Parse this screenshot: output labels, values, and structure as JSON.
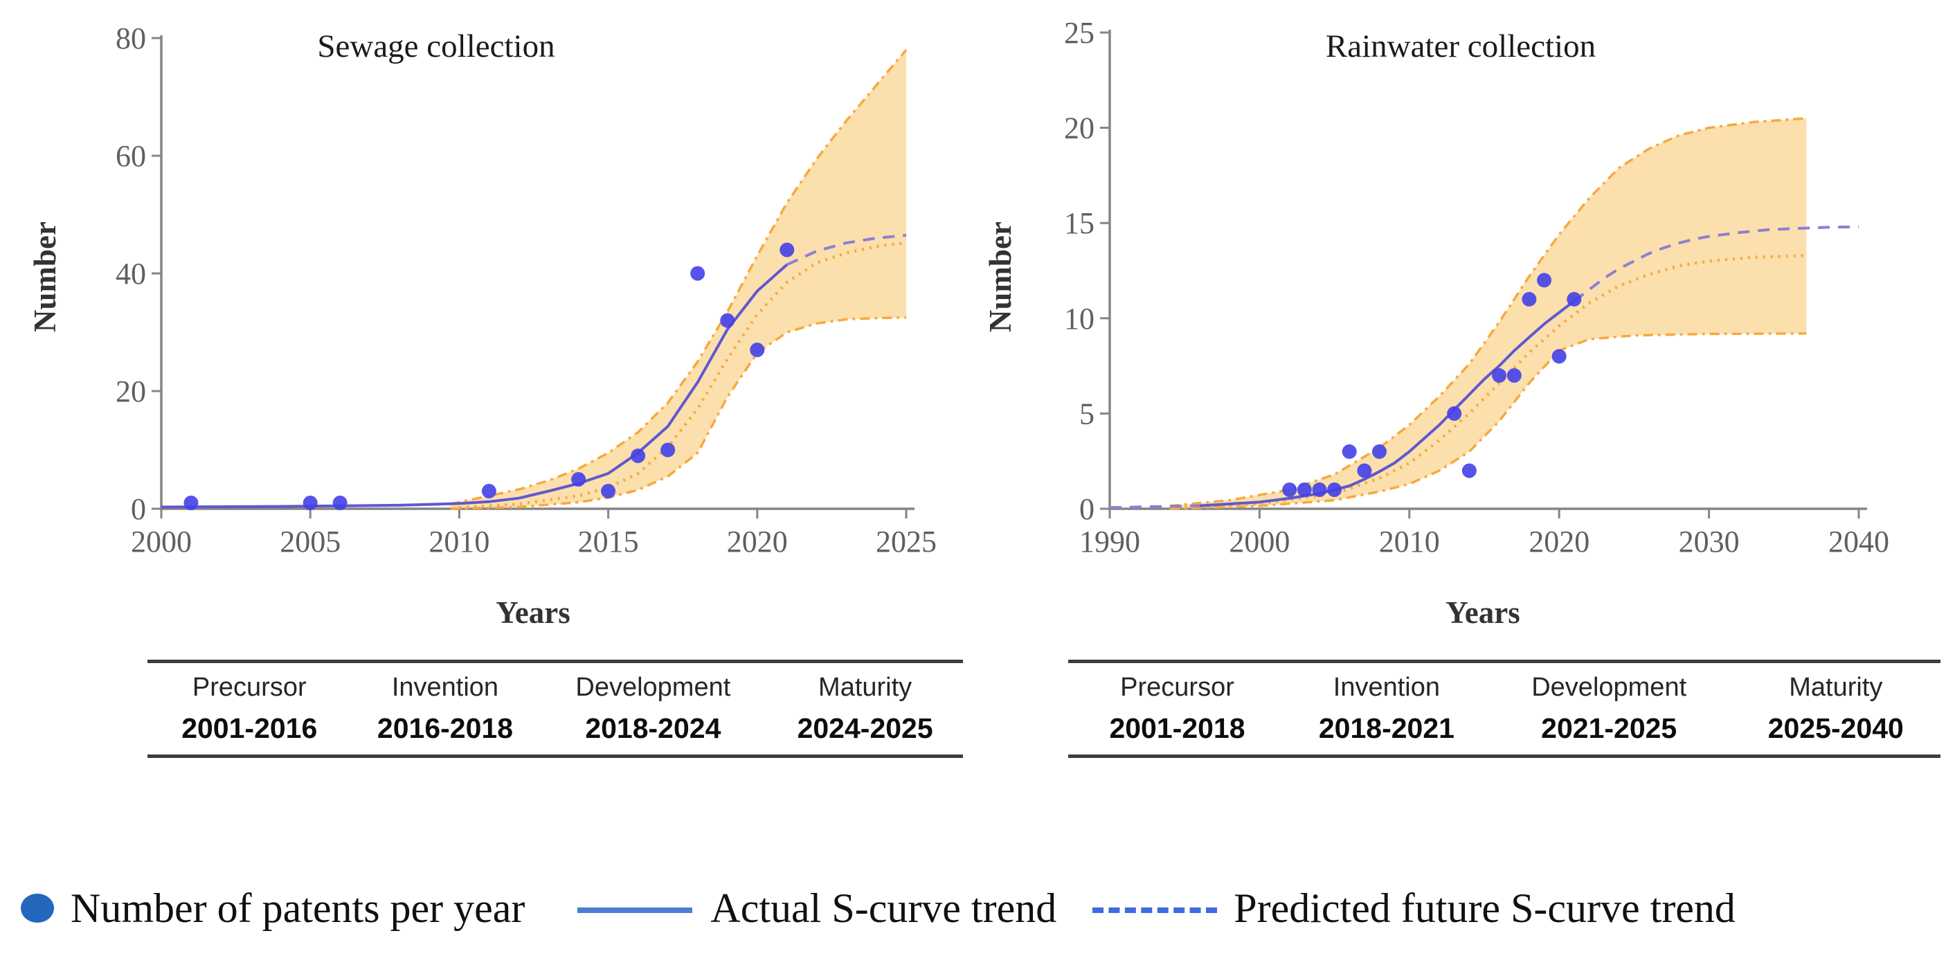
{
  "colors": {
    "axis": "#858585",
    "tick_label": "#5f5f5f",
    "point": "#4340E8",
    "curve": "#5F58D0",
    "predicted": "#8C7FD2",
    "band_fill": "#F7C569",
    "band_stroke": "#F7A93D",
    "legend_dot": "#2368BD",
    "legend_solid_line": "#4A7FD2",
    "legend_dashed_line": "#3E6BE0"
  },
  "legend": {
    "items": [
      {
        "marker": "dot",
        "label": "Number of patents per year"
      },
      {
        "marker": "solid-line",
        "label": "Actual S-curve trend"
      },
      {
        "marker": "dashed-line",
        "label": "Predicted future S-curve trend"
      }
    ]
  },
  "chart_data": [
    {
      "type": "scatter",
      "title": "Sewage collection",
      "xlabel": "Years",
      "ylabel": "Number",
      "xlim": [
        2000,
        2025
      ],
      "ylim": [
        0,
        80
      ],
      "xticks": [
        2000,
        2005,
        2010,
        2015,
        2020,
        2025
      ],
      "yticks": [
        0,
        20,
        40,
        60,
        80
      ],
      "grid": false,
      "series": [
        {
          "name": "Number of patents per year",
          "type": "scatter",
          "x": [
            2001,
            2005,
            2006,
            2011,
            2014,
            2015,
            2016,
            2017,
            2018,
            2019,
            2020,
            2021
          ],
          "y": [
            1,
            1,
            1,
            3,
            5,
            3,
            9,
            10,
            40,
            32,
            27,
            44
          ]
        },
        {
          "name": "Confidence band",
          "type": "band",
          "upper": [
            [
              2009.7,
              0.8
            ],
            [
              2011,
              2.2
            ],
            [
              2012,
              3.3
            ],
            [
              2013,
              4.8
            ],
            [
              2014,
              6.8
            ],
            [
              2015,
              9.5
            ],
            [
              2016,
              13
            ],
            [
              2017,
              18
            ],
            [
              2018,
              25
            ],
            [
              2019,
              33.5
            ],
            [
              2020,
              43
            ],
            [
              2021,
              52
            ],
            [
              2022,
              59.5
            ],
            [
              2023,
              66
            ],
            [
              2024,
              72
            ],
            [
              2025,
              78
            ]
          ],
          "lower": [
            [
              2009.7,
              0.02
            ],
            [
              2012,
              0.3
            ],
            [
              2014,
              1.1
            ],
            [
              2015,
              1.9
            ],
            [
              2016,
              3.2
            ],
            [
              2017,
              5.5
            ],
            [
              2018,
              9.5
            ],
            [
              2019,
              19
            ],
            [
              2020,
              26.5
            ],
            [
              2021,
              30
            ],
            [
              2022,
              31.5
            ],
            [
              2023,
              32.2
            ],
            [
              2024,
              32.4
            ],
            [
              2025,
              32.5
            ]
          ]
        },
        {
          "name": "Fitted trend (dotted)",
          "type": "line",
          "style": "dotted",
          "points": [
            [
              2010,
              0.2
            ],
            [
              2012,
              0.8
            ],
            [
              2014,
              2.2
            ],
            [
              2015,
              3.6
            ],
            [
              2016,
              6
            ],
            [
              2017,
              10.5
            ],
            [
              2018,
              17
            ],
            [
              2019,
              25.5
            ],
            [
              2020,
              33
            ],
            [
              2021,
              38.5
            ],
            [
              2022,
              41.8
            ],
            [
              2023,
              43.5
            ],
            [
              2024,
              44.6
            ],
            [
              2025,
              45.2
            ]
          ]
        },
        {
          "name": "Actual S-curve trend",
          "type": "line",
          "style": "solid",
          "points": [
            [
              2000,
              0.3
            ],
            [
              2004,
              0.4
            ],
            [
              2008,
              0.6
            ],
            [
              2010,
              0.9
            ],
            [
              2011,
              1.2
            ],
            [
              2012,
              1.8
            ],
            [
              2013,
              3
            ],
            [
              2014,
              4.3
            ],
            [
              2015,
              6
            ],
            [
              2016,
              9.5
            ],
            [
              2017,
              14
            ],
            [
              2018,
              21.5
            ],
            [
              2019,
              30.5
            ],
            [
              2020,
              37
            ],
            [
              2021,
              41.5
            ]
          ]
        },
        {
          "name": "Predicted future S-curve trend",
          "type": "line",
          "style": "dashed",
          "points": [
            [
              2021,
              41.5
            ],
            [
              2022,
              43.8
            ],
            [
              2023,
              45.2
            ],
            [
              2024,
              46
            ],
            [
              2025,
              46.5
            ]
          ]
        }
      ],
      "stages": {
        "headers": [
          "Precursor",
          "Invention",
          "Development",
          "Maturity"
        ],
        "ranges": [
          "2001-2016",
          "2016-2018",
          "2018-2024",
          "2024-2025"
        ]
      }
    },
    {
      "type": "scatter",
      "title": "Rainwater collection",
      "xlabel": "Years",
      "ylabel": "Number",
      "xlim": [
        1990,
        2040
      ],
      "ylim": [
        0,
        25
      ],
      "xticks": [
        1990,
        2000,
        2010,
        2020,
        2030,
        2040
      ],
      "yticks": [
        0,
        5,
        10,
        15,
        20,
        25
      ],
      "grid": false,
      "series": [
        {
          "name": "Number of patents per year",
          "type": "scatter",
          "x": [
            2002,
            2003,
            2004,
            2005,
            2006,
            2007,
            2008,
            2013,
            2014,
            2016,
            2017,
            2018,
            2019,
            2020,
            2021
          ],
          "y": [
            1,
            1,
            1,
            1,
            3,
            2,
            3,
            5,
            2,
            7,
            7,
            11,
            12,
            8,
            11
          ]
        },
        {
          "name": "Confidence band",
          "type": "band",
          "upper": [
            [
              1994,
              0.15
            ],
            [
              1998,
              0.45
            ],
            [
              2002,
              1.0
            ],
            [
              2005,
              1.8
            ],
            [
              2008,
              3.2
            ],
            [
              2010,
              4.4
            ],
            [
              2012,
              5.9
            ],
            [
              2014,
              7.6
            ],
            [
              2016,
              9.8
            ],
            [
              2018,
              12.2
            ],
            [
              2020,
              14.4
            ],
            [
              2022,
              16.3
            ],
            [
              2024,
              17.9
            ],
            [
              2026,
              18.9
            ],
            [
              2028,
              19.6
            ],
            [
              2030,
              20.0
            ],
            [
              2033,
              20.3
            ],
            [
              2036.5,
              20.5
            ]
          ],
          "lower": [
            [
              1994,
              0.0
            ],
            [
              2000,
              0.15
            ],
            [
              2005,
              0.45
            ],
            [
              2008,
              0.9
            ],
            [
              2010,
              1.3
            ],
            [
              2012,
              2.0
            ],
            [
              2014,
              3.0
            ],
            [
              2016,
              4.6
            ],
            [
              2018,
              6.6
            ],
            [
              2020,
              8.3
            ],
            [
              2022,
              8.9
            ],
            [
              2025,
              9.1
            ],
            [
              2030,
              9.18
            ],
            [
              2036.5,
              9.2
            ]
          ]
        },
        {
          "name": "Fitted trend (dotted)",
          "type": "line",
          "style": "dotted",
          "points": [
            [
              1994,
              0.05
            ],
            [
              2000,
              0.25
            ],
            [
              2005,
              0.8
            ],
            [
              2008,
              1.6
            ],
            [
              2010,
              2.4
            ],
            [
              2012,
              3.6
            ],
            [
              2014,
              5.0
            ],
            [
              2016,
              6.6
            ],
            [
              2018,
              8.2
            ],
            [
              2020,
              9.6
            ],
            [
              2022,
              10.8
            ],
            [
              2024,
              11.7
            ],
            [
              2026,
              12.3
            ],
            [
              2028,
              12.75
            ],
            [
              2030,
              13.0
            ],
            [
              2033,
              13.2
            ],
            [
              2036.5,
              13.3
            ]
          ]
        },
        {
          "name": "Predicted hindcast",
          "type": "line",
          "style": "dashed",
          "points": [
            [
              1990,
              0.06
            ],
            [
              1996,
              0.16
            ]
          ]
        },
        {
          "name": "Actual S-curve trend",
          "type": "line",
          "style": "solid",
          "points": [
            [
              1996,
              0.16
            ],
            [
              2000,
              0.35
            ],
            [
              2002,
              0.55
            ],
            [
              2004,
              0.8
            ],
            [
              2005,
              1.0
            ],
            [
              2006,
              1.2
            ],
            [
              2007,
              1.55
            ],
            [
              2008,
              1.95
            ],
            [
              2009,
              2.4
            ],
            [
              2010,
              3.0
            ],
            [
              2011,
              3.7
            ],
            [
              2012,
              4.4
            ],
            [
              2013,
              5.2
            ],
            [
              2014,
              6.0
            ],
            [
              2015,
              6.8
            ],
            [
              2016,
              7.5
            ],
            [
              2017,
              8.3
            ],
            [
              2018,
              9.0
            ],
            [
              2019,
              9.7
            ],
            [
              2020,
              10.3
            ],
            [
              2021,
              10.9
            ]
          ]
        },
        {
          "name": "Predicted future S-curve trend",
          "type": "line",
          "style": "dashed",
          "points": [
            [
              2021,
              10.9
            ],
            [
              2022,
              11.5
            ],
            [
              2023,
              12.1
            ],
            [
              2024,
              12.6
            ],
            [
              2025,
              13.0
            ],
            [
              2026,
              13.4
            ],
            [
              2027,
              13.7
            ],
            [
              2028,
              13.95
            ],
            [
              2029,
              14.15
            ],
            [
              2030,
              14.3
            ],
            [
              2032,
              14.5
            ],
            [
              2034,
              14.65
            ],
            [
              2036,
              14.72
            ],
            [
              2038,
              14.78
            ],
            [
              2040,
              14.8
            ]
          ]
        }
      ],
      "stages": {
        "headers": [
          "Precursor",
          "Invention",
          "Development",
          "Maturity"
        ],
        "ranges": [
          "2001-2018",
          "2018-2021",
          "2021-2025",
          "2025-2040"
        ]
      }
    }
  ]
}
